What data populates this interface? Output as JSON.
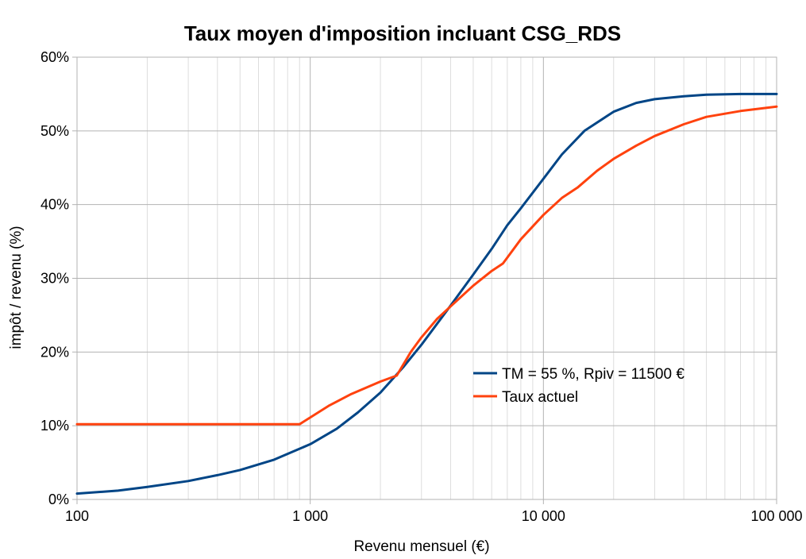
{
  "chart_data": {
    "type": "line",
    "title": "Taux moyen d'imposition incluant CSG_RDS",
    "xlabel": "Revenu mensuel (€)",
    "ylabel": "impôt / revenu (%)",
    "x_scale": "log",
    "xlim": [
      100,
      100000
    ],
    "ylim": [
      0,
      60
    ],
    "x_ticks": [
      100,
      1000,
      10000,
      100000
    ],
    "x_tick_labels": [
      "100",
      "1 000",
      "10 000",
      "100 000"
    ],
    "y_ticks": [
      0,
      10,
      20,
      30,
      40,
      50,
      60
    ],
    "y_tick_labels": [
      "0%",
      "10%",
      "20%",
      "30%",
      "40%",
      "50%",
      "60%"
    ],
    "grid": true,
    "legend_position": "right, mid-lower",
    "series": [
      {
        "name": "TM = 55 %, Rpiv = 11500 €",
        "color": "#004586",
        "x": [
          100,
          150,
          200,
          300,
          400,
          500,
          700,
          1000,
          1300,
          1600,
          2000,
          2500,
          3000,
          4000,
          5000,
          6000,
          7000,
          8000,
          10000,
          12000,
          15000,
          20000,
          25000,
          30000,
          40000,
          50000,
          70000,
          100000
        ],
        "y": [
          0.8,
          1.2,
          1.7,
          2.5,
          3.3,
          4.0,
          5.4,
          7.5,
          9.6,
          11.8,
          14.5,
          17.9,
          21.0,
          26.3,
          30.5,
          34.0,
          37.2,
          39.5,
          43.5,
          46.8,
          50.0,
          52.6,
          53.8,
          54.3,
          54.7,
          54.9,
          55.0,
          55.0
        ]
      },
      {
        "name": "Taux actuel",
        "color": "#ff420e",
        "x": [
          100,
          200,
          400,
          600,
          800,
          900,
          1200,
          1500,
          2000,
          2350,
          2700,
          3000,
          3500,
          4000,
          5000,
          6000,
          6700,
          8000,
          10000,
          12000,
          14000,
          17000,
          20000,
          25000,
          30000,
          40000,
          50000,
          70000,
          100000
        ],
        "y": [
          10.2,
          10.2,
          10.2,
          10.2,
          10.2,
          10.2,
          12.7,
          14.3,
          16.0,
          16.8,
          20.0,
          22.0,
          24.5,
          26.2,
          29.0,
          31.0,
          32.0,
          35.3,
          38.6,
          40.9,
          42.3,
          44.6,
          46.2,
          48.0,
          49.3,
          50.9,
          51.9,
          52.7,
          53.3
        ]
      }
    ]
  }
}
